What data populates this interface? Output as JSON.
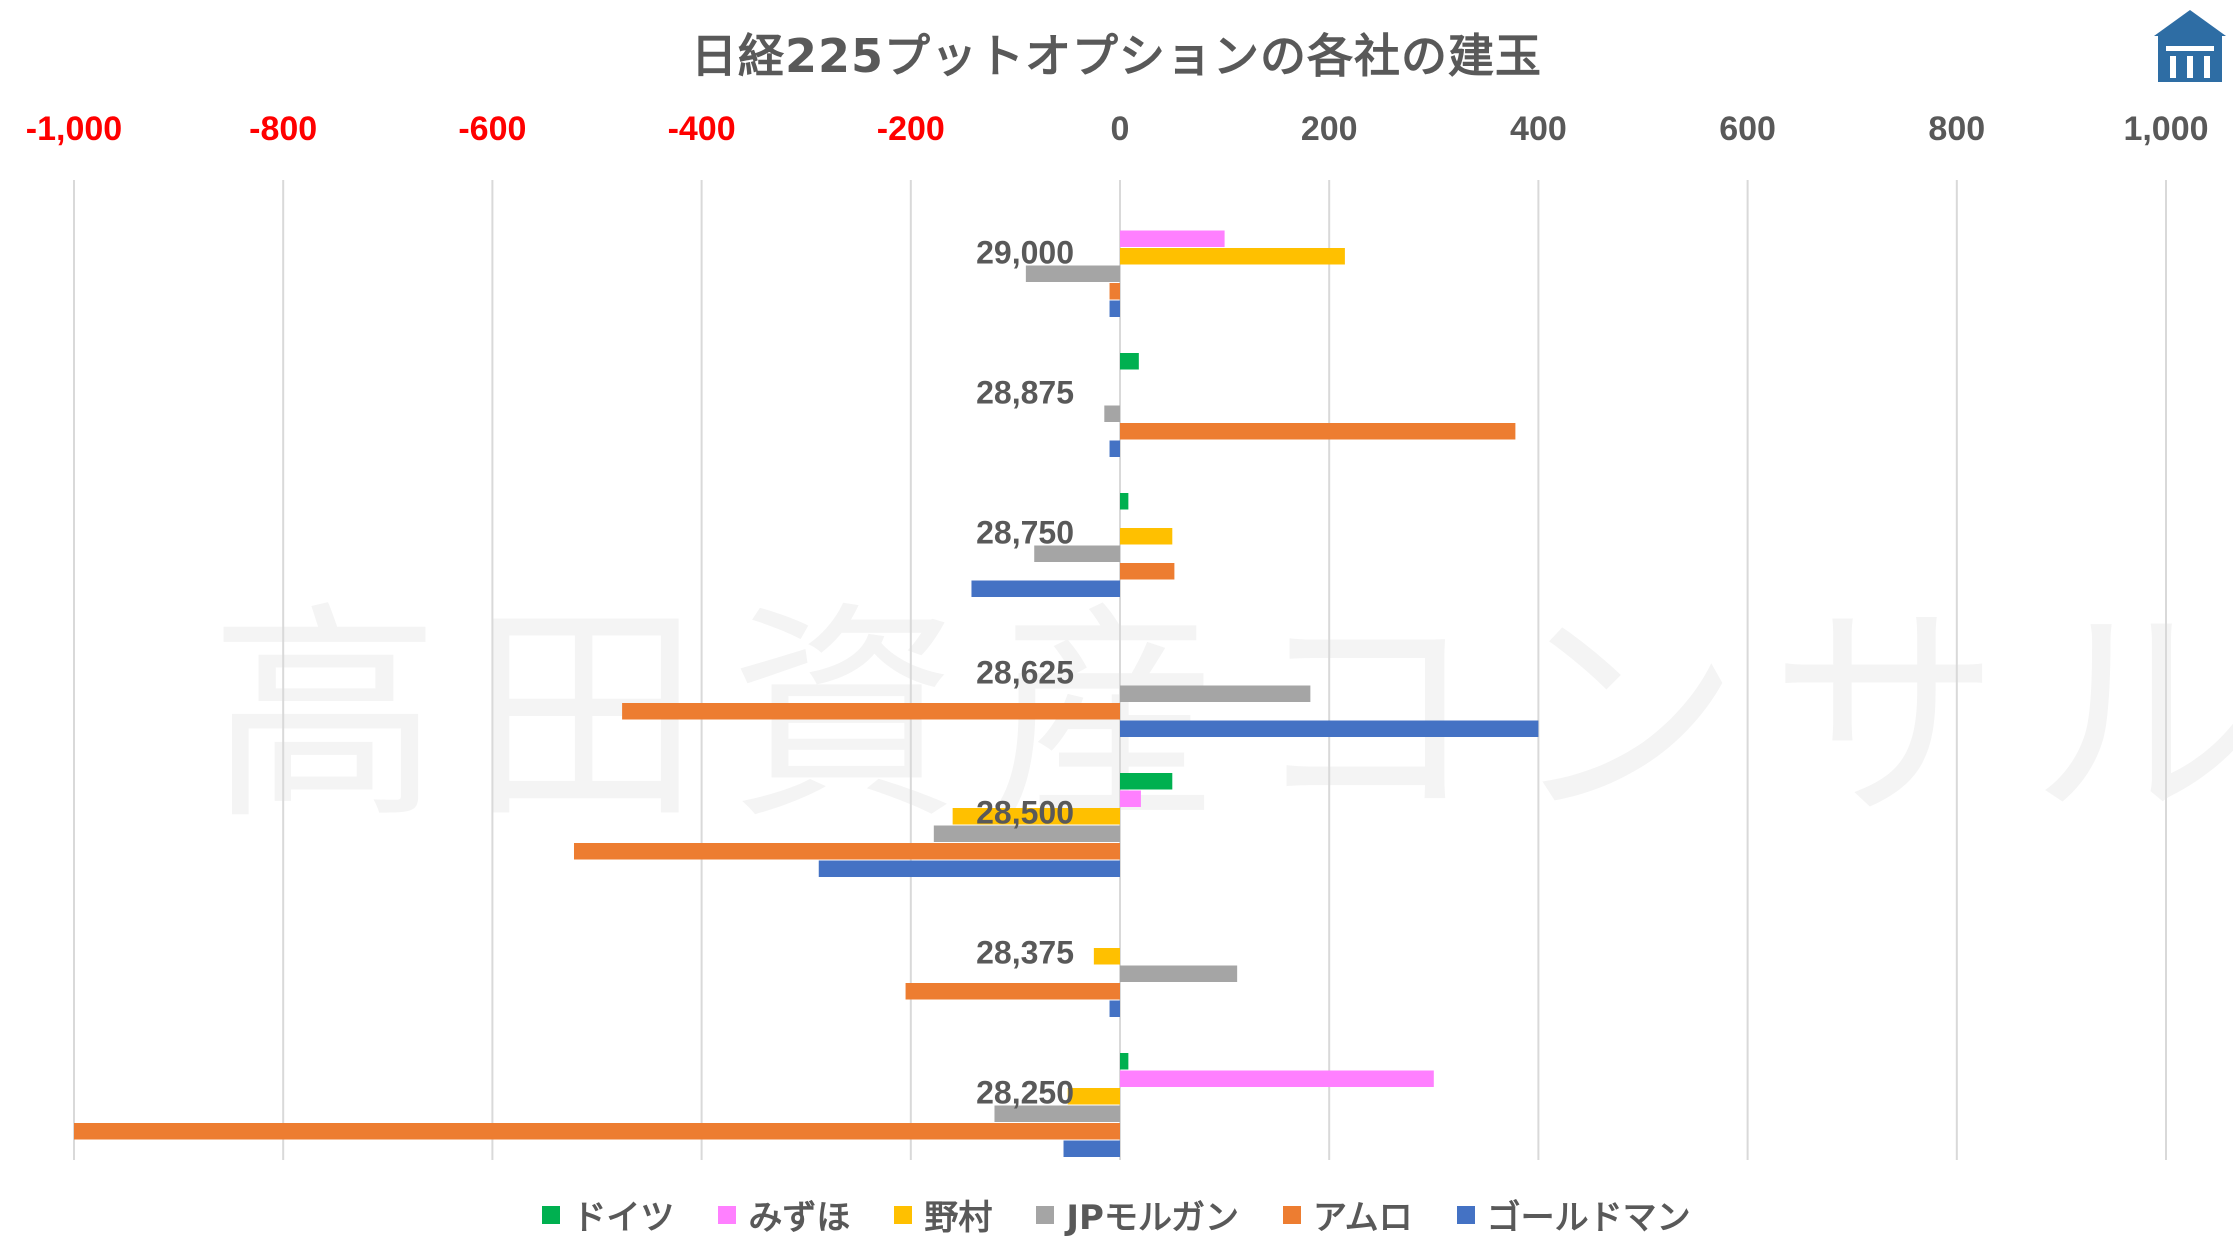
{
  "title": "日経225プットオプションの各社の建玉",
  "watermark": "高田資産コンサル",
  "logo": {
    "icon": "building-icon",
    "color": "#2e6da4"
  },
  "chart_data": {
    "type": "bar",
    "orientation": "horizontal",
    "title": "日経225プットオプションの各社の建玉",
    "categories": [
      "29,000",
      "28,875",
      "28,750",
      "28,625",
      "28,500",
      "28,375",
      "28,250"
    ],
    "xlim": [
      -1000,
      1000
    ],
    "x_ticks": [
      -1000,
      -800,
      -600,
      -400,
      -200,
      0,
      200,
      400,
      600,
      800,
      1000
    ],
    "x_tick_labels": [
      "-1,000",
      "-800",
      "-600",
      "-400",
      "-200",
      "0",
      "200",
      "400",
      "600",
      "800",
      "1,000"
    ],
    "negative_tick_color": "#ff0000",
    "tick_color": "#595959",
    "grid": true,
    "legend_position": "bottom",
    "series": [
      {
        "name": "ドイツ",
        "color": "#00b050",
        "values": [
          0,
          18,
          8,
          0,
          50,
          0,
          8
        ]
      },
      {
        "name": "みずほ",
        "color": "#ff80ff",
        "values": [
          100,
          0,
          0,
          0,
          20,
          0,
          300
        ]
      },
      {
        "name": "野村",
        "color": "#ffc000",
        "values": [
          215,
          0,
          50,
          0,
          -160,
          -25,
          -50
        ]
      },
      {
        "name": "JPモルガン",
        "color": "#a5a5a5",
        "values": [
          -90,
          -15,
          -82,
          182,
          -178,
          112,
          -120
        ]
      },
      {
        "name": "アムロ",
        "color": "#ed7d31",
        "values": [
          -10,
          378,
          52,
          -476,
          -522,
          -205,
          -1000
        ]
      },
      {
        "name": "ゴールドマン",
        "color": "#4472c4",
        "values": [
          -10,
          -10,
          -142,
          400,
          -288,
          -10,
          -54
        ]
      }
    ]
  }
}
